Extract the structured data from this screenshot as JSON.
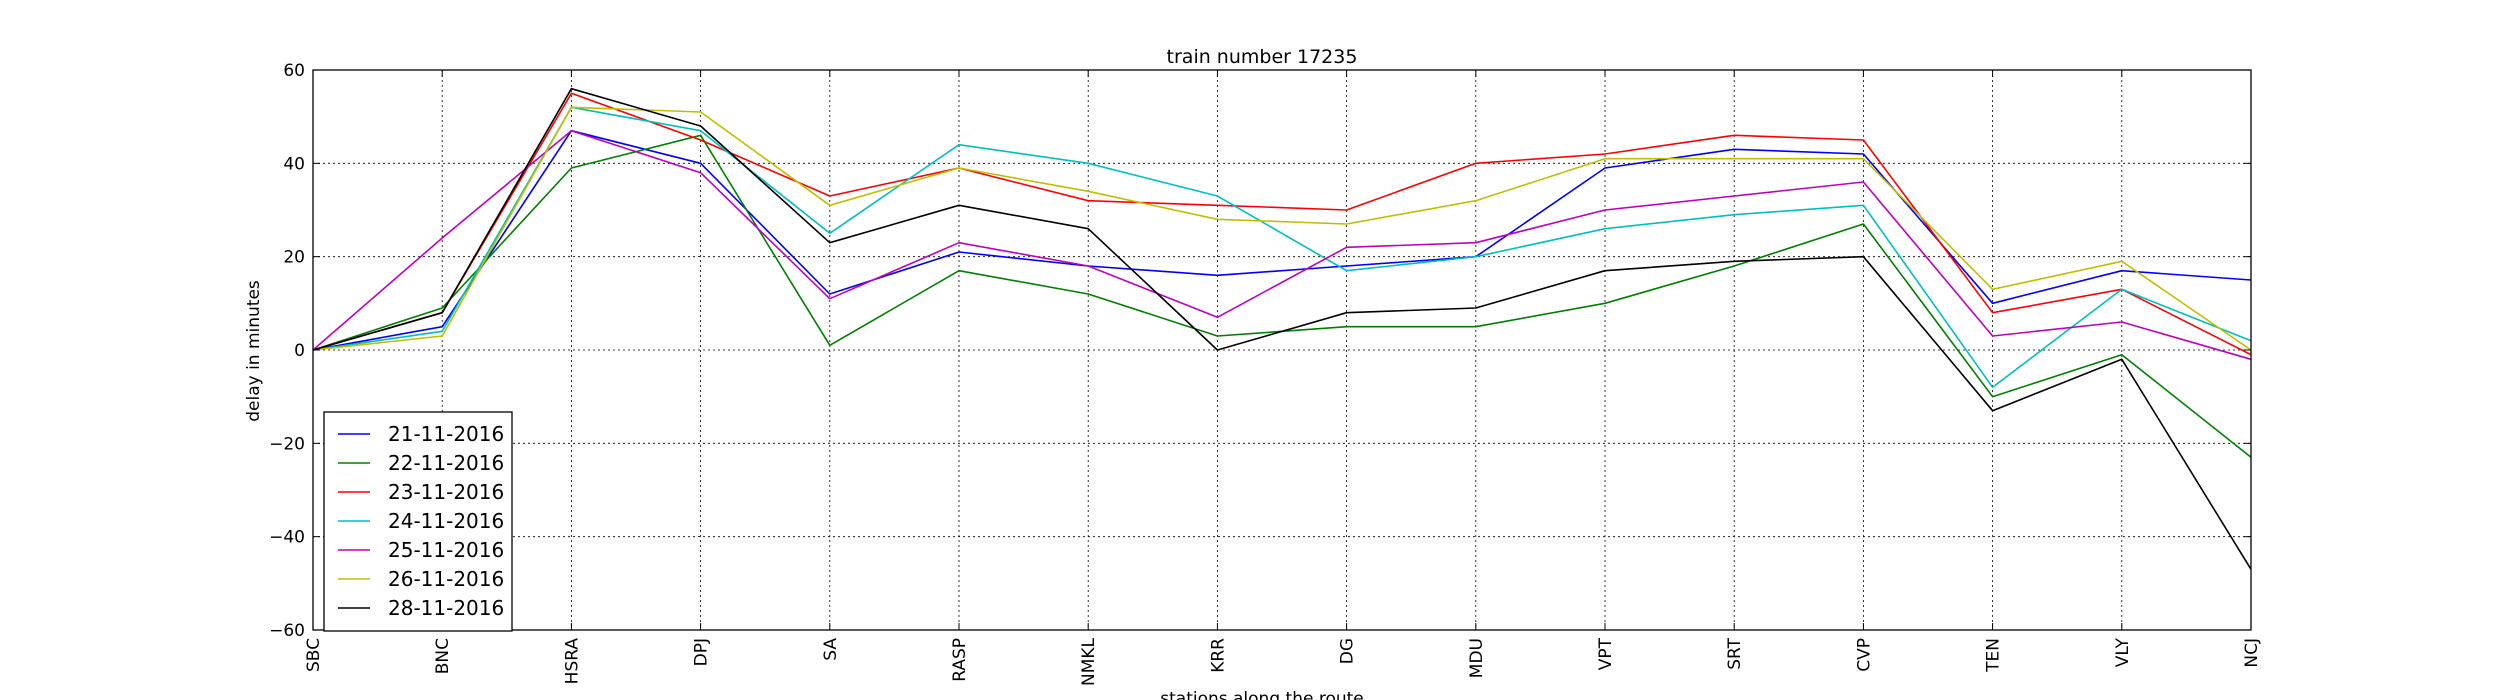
{
  "chart_data": {
    "type": "line",
    "title": "train number 17235",
    "xlabel": "stations along the route",
    "ylabel": "delay in minutes",
    "ylim": [
      -60,
      60
    ],
    "yticks": [
      -60,
      -40,
      -20,
      0,
      20,
      40,
      60
    ],
    "grid": true,
    "legend_position": "lower-left",
    "categories": [
      "SBC",
      "BNC",
      "HSRA",
      "DPJ",
      "SA",
      "RASP",
      "NMKL",
      "KRR",
      "DG",
      "MDU",
      "VPT",
      "SRT",
      "CVP",
      "TEN",
      "VLY",
      "NCJ"
    ],
    "series": [
      {
        "name": "21-11-2016",
        "color": "#0000ff",
        "values": [
          0,
          5,
          47,
          40,
          12,
          21,
          18,
          16,
          18,
          20,
          39,
          43,
          42,
          10,
          17,
          15
        ]
      },
      {
        "name": "22-11-2016",
        "color": "#008000",
        "values": [
          0,
          9,
          39,
          46,
          1,
          17,
          12,
          3,
          5,
          5,
          10,
          18,
          27,
          -10,
          -1,
          -23
        ]
      },
      {
        "name": "23-11-2016",
        "color": "#ff0000",
        "values": [
          0,
          8,
          55,
          45,
          33,
          39,
          32,
          31,
          30,
          40,
          42,
          46,
          45,
          8,
          13,
          -1
        ]
      },
      {
        "name": "24-11-2016",
        "color": "#00bfbf",
        "values": [
          0,
          4,
          52,
          47,
          25,
          44,
          40,
          33,
          17,
          20,
          26,
          29,
          31,
          -8,
          13,
          2
        ]
      },
      {
        "name": "25-11-2016",
        "color": "#bf00bf",
        "values": [
          0,
          24,
          47,
          38,
          11,
          23,
          18,
          7,
          22,
          23,
          30,
          33,
          36,
          3,
          6,
          -2
        ]
      },
      {
        "name": "26-11-2016",
        "color": "#bfbf00",
        "values": [
          0,
          3,
          52,
          51,
          31,
          39,
          34,
          28,
          27,
          32,
          41,
          41,
          41,
          13,
          19,
          0
        ]
      },
      {
        "name": "28-11-2016",
        "color": "#000000",
        "values": [
          0,
          8,
          56,
          48,
          23,
          31,
          26,
          0,
          8,
          9,
          17,
          19,
          20,
          -13,
          -2,
          -47
        ]
      }
    ]
  }
}
